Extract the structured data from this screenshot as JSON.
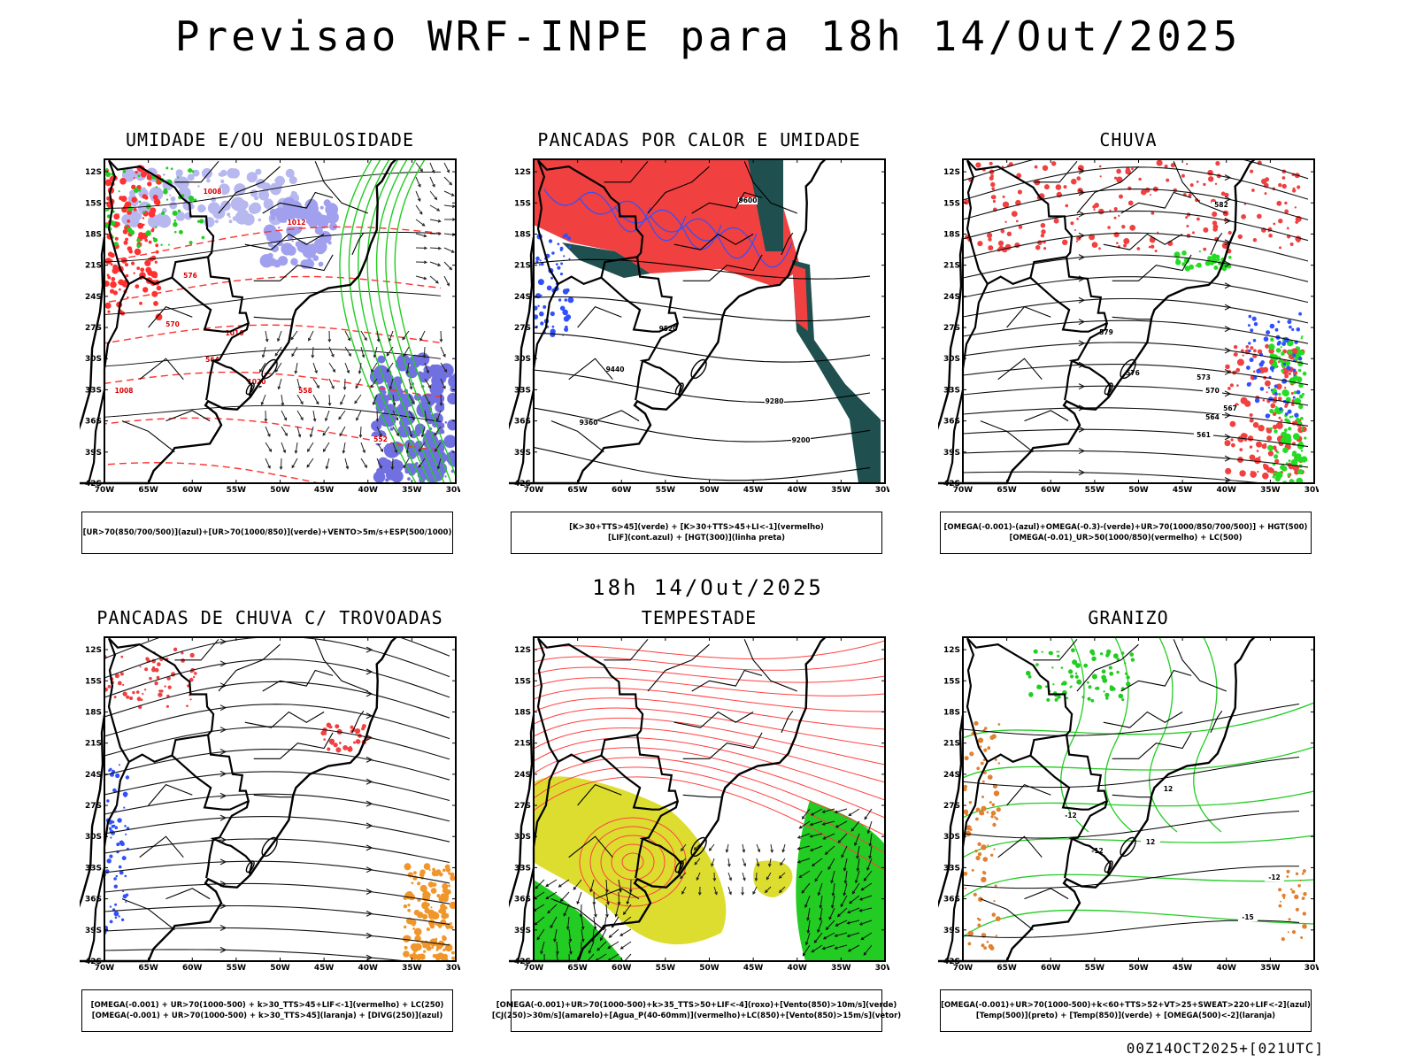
{
  "header": {
    "title": "Previsao WRF-INPE  para 18h 14/Out/2025",
    "subtitle": "18h 14/Out/2025",
    "footer": "00Z14OCT2025+[021UTC]"
  },
  "axes": {
    "lat_labels": [
      "12S",
      "15S",
      "18S",
      "21S",
      "24S",
      "27S",
      "30S",
      "33S",
      "36S",
      "39S",
      "42S"
    ],
    "lon_labels": [
      "70W",
      "65W",
      "60W",
      "55W",
      "50W",
      "45W",
      "40W",
      "35W",
      "30W"
    ]
  },
  "panels": [
    {
      "id": "umidade",
      "title": "UMIDADE E/OU NEBULOSIDADE",
      "legend": [
        "[UR>70(850/700/500)](azul)+[UR>70(1000/850)](verde)+VENTO>5m/s+ESP(500/1000)"
      ],
      "contour_labels": [
        "1008",
        "1012",
        "1016",
        "1020",
        "1008",
        "576",
        "570",
        "564",
        "558",
        "552"
      ],
      "colors": {
        "blue": "#8080e0",
        "green": "#22cc22",
        "red": "#ff3030"
      }
    },
    {
      "id": "pancadas-calor",
      "title": "PANCADAS POR CALOR E UMIDADE",
      "legend": [
        "[K>30+TTS>45](verde)  +  [K>30+TTS>45+LI<-1](vermelho)",
        "[LIF](cont.azul)  +  [HGT(300)](linha preta)"
      ],
      "contour_labels": [
        "9600",
        "9520",
        "9440",
        "9360",
        "9280",
        "9200"
      ],
      "colors": {
        "red": "#f04040",
        "teal": "#1f4f4f",
        "blue": "#3050ff"
      }
    },
    {
      "id": "chuva",
      "title": "CHUVA",
      "legend": [
        "[OMEGA(-0.001)-(azul)+OMEGA(-0.3)-(verde)+UR>70(1000/850/700/500)]  +  HGT(500)",
        "[OMEGA(-0.01)_UR>50(1000/850)(vermelho) + LC(500)"
      ],
      "contour_labels": [
        "582",
        "579",
        "576",
        "573",
        "570",
        "567",
        "564",
        "561"
      ],
      "colors": {
        "red": "#f04040",
        "green": "#22dd22",
        "blue": "#3050ff"
      }
    },
    {
      "id": "trovoadas",
      "title": "PANCADAS DE CHUVA C/ TROVOADAS",
      "legend": [
        "[OMEGA(-0.001) + UR>70(1000-500) + k>30_TTS>45+LIF<-1](vermelho) + LC(250)",
        "[OMEGA(-0.001) + UR>70(1000-500) + k>30_TTS>45](laranja) + [DIVG(250)](azul)"
      ],
      "contour_labels": [],
      "colors": {
        "red": "#f04040",
        "orange": "#f0962a",
        "blue": "#3050ff"
      }
    },
    {
      "id": "tempestade",
      "title": "TEMPESTADE",
      "legend": [
        "[OMEGA(-0.001)+UR>70(1000-500)+k>35_TTS>50+LIF<-4](roxo)+[Vento(850)>10m/s](verde)",
        "[CJ(250)>30m/s](amarelo)+[Agua_P(40-60mm)](vermelho)+LC(850)+[Vento(850)>15m/s](vetor)"
      ],
      "contour_labels": [],
      "colors": {
        "yellow": "#dddd30",
        "green": "#22cc22",
        "red": "#ff4040"
      }
    },
    {
      "id": "granizo",
      "title": "GRANIZO",
      "legend": [
        "[OMEGA(-0.001)+UR>70(1000-500)+k<60+TTS>52+VT>25+SWEAT>220+LIF<-2](azul)",
        "[Temp(500)](preto)  +  [Temp(850)](verde)  +  [OMEGA(500)<-2](laranja)"
      ],
      "contour_labels": [
        "-12",
        "-15",
        "-12",
        "-12",
        "12",
        "12"
      ],
      "colors": {
        "green": "#22cc22",
        "orange": "#e08030",
        "black": "#000000"
      }
    }
  ]
}
